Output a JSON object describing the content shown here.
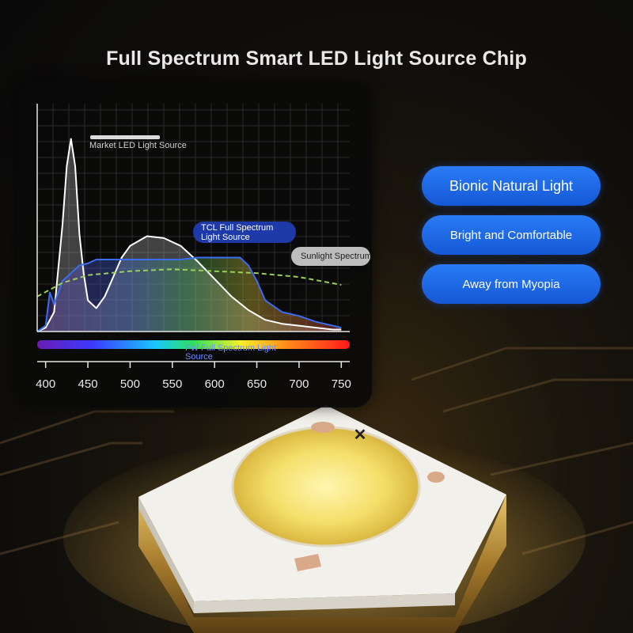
{
  "header": {
    "title": "Full Spectrum Smart LED Light Source Chip"
  },
  "features": [
    {
      "label": "Bionic Natural Light"
    },
    {
      "label": "Bright and Comfortable"
    },
    {
      "label": "Away from Myopia"
    }
  ],
  "chip": {
    "mark": "✕"
  },
  "chart_data": {
    "type": "line",
    "xlabel": "",
    "ylabel": "",
    "xlim": [
      390,
      760
    ],
    "ylim": [
      0,
      100
    ],
    "grid": true,
    "x_ticks": [
      400,
      450,
      500,
      550,
      600,
      650,
      700,
      750
    ],
    "series": [
      {
        "name": "Market LED Light Source",
        "color": "#ffffff",
        "x": [
          390,
          400,
          410,
          420,
          425,
          430,
          435,
          440,
          445,
          450,
          460,
          470,
          480,
          490,
          500,
          520,
          540,
          560,
          580,
          600,
          620,
          640,
          660,
          680,
          700,
          720,
          740,
          750
        ],
        "y": [
          0,
          2,
          10,
          55,
          85,
          99,
          85,
          50,
          30,
          16,
          12,
          18,
          28,
          38,
          44,
          49,
          48,
          44,
          36,
          27,
          18,
          11,
          6,
          4,
          3,
          2,
          1,
          1
        ]
      },
      {
        "name": "TCL Full Spectrum Light Source",
        "color": "#3a6df0",
        "x": [
          390,
          400,
          405,
          410,
          415,
          420,
          430,
          440,
          450,
          455,
          460,
          480,
          500,
          520,
          540,
          560,
          580,
          600,
          620,
          630,
          640,
          650,
          660,
          680,
          700,
          720,
          740,
          750
        ],
        "y": [
          0,
          3,
          20,
          14,
          20,
          26,
          30,
          34,
          35,
          36,
          37,
          37,
          37,
          37,
          37,
          37,
          38,
          38,
          38,
          38,
          34,
          26,
          16,
          10,
          8,
          5,
          3,
          2
        ]
      },
      {
        "name": "Sunlight Spectrum",
        "color": "#9ad05a",
        "dashed": true,
        "x": [
          390,
          420,
          450,
          500,
          550,
          600,
          650,
          700,
          750
        ],
        "y": [
          18,
          25,
          29,
          31,
          32,
          31,
          30,
          28,
          24
        ]
      }
    ],
    "annotations": [
      {
        "text": "Market LED Light Source"
      },
      {
        "text": "TCL Full Spectrum Light Source"
      },
      {
        "text": "Sunlight Spectrum"
      },
      {
        "text": "FW Full Spectrum Light Source"
      }
    ]
  }
}
